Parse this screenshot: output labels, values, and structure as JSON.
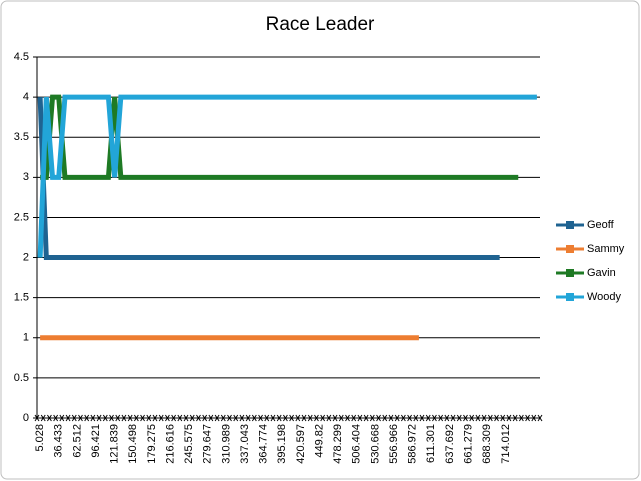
{
  "chart_data": {
    "type": "line",
    "title": "Race Leader",
    "categories": [
      "5.028",
      null,
      null,
      "36.433",
      null,
      null,
      "62.512",
      null,
      null,
      "96.421",
      null,
      null,
      "121.839",
      null,
      null,
      "150.498",
      null,
      null,
      "179.275",
      null,
      null,
      "216.616",
      null,
      null,
      "245.575",
      null,
      null,
      "279.647",
      null,
      null,
      "310.989",
      null,
      null,
      "337.043",
      null,
      null,
      "364.774",
      null,
      null,
      "395.198",
      null,
      null,
      "420.597",
      null,
      null,
      "449.82",
      null,
      null,
      "478.299",
      null,
      null,
      "506.404",
      null,
      null,
      "530.668",
      null,
      null,
      "556.966",
      null,
      null,
      "586.972",
      null,
      null,
      "611.301",
      null,
      null,
      "637.692",
      null,
      null,
      "661.279",
      null,
      null,
      "688.309",
      null,
      null,
      "714.012",
      null,
      null,
      null,
      null,
      null
    ],
    "series": [
      {
        "name": "Geoff",
        "color": "#1f6391",
        "values": [
          4,
          2,
          2,
          2,
          2,
          2,
          2,
          2,
          2,
          2,
          2,
          2,
          2,
          2,
          2,
          2,
          2,
          2,
          2,
          2,
          2,
          2,
          2,
          2,
          2,
          2,
          2,
          2,
          2,
          2,
          2,
          2,
          2,
          2,
          2,
          2,
          2,
          2,
          2,
          2,
          2,
          2,
          2,
          2,
          2,
          2,
          2,
          2,
          2,
          2,
          2,
          2,
          2,
          2,
          2,
          2,
          2,
          2,
          2,
          2,
          2,
          2,
          2,
          2,
          2,
          2,
          2,
          2,
          2,
          2,
          2,
          2,
          2,
          2,
          2,
          null,
          null,
          null,
          null,
          null,
          null
        ]
      },
      {
        "name": "Sammy",
        "color": "#ed7d31",
        "values": [
          1,
          1,
          1,
          1,
          1,
          1,
          1,
          1,
          1,
          1,
          1,
          1,
          1,
          1,
          1,
          1,
          1,
          1,
          1,
          1,
          1,
          1,
          1,
          1,
          1,
          1,
          1,
          1,
          1,
          1,
          1,
          1,
          1,
          1,
          1,
          1,
          1,
          1,
          1,
          1,
          1,
          1,
          1,
          1,
          1,
          1,
          1,
          1,
          1,
          1,
          1,
          1,
          1,
          1,
          1,
          1,
          1,
          1,
          1,
          1,
          1,
          1,
          null,
          null,
          null,
          null,
          null,
          null,
          null,
          null,
          null,
          null,
          null,
          null,
          null,
          null,
          null,
          null,
          null,
          null,
          null
        ]
      },
      {
        "name": "Gavin",
        "color": "#1e7a24",
        "values": [
          3,
          3,
          4,
          4,
          3,
          3,
          3,
          3,
          3,
          3,
          3,
          3,
          4,
          3,
          3,
          3,
          3,
          3,
          3,
          3,
          3,
          3,
          3,
          3,
          3,
          3,
          3,
          3,
          3,
          3,
          3,
          3,
          3,
          3,
          3,
          3,
          3,
          3,
          3,
          3,
          3,
          3,
          3,
          3,
          3,
          3,
          3,
          3,
          3,
          3,
          3,
          3,
          3,
          3,
          3,
          3,
          3,
          3,
          3,
          3,
          3,
          3,
          3,
          3,
          3,
          3,
          3,
          3,
          3,
          3,
          3,
          3,
          3,
          3,
          3,
          3,
          3,
          3,
          null,
          null,
          null
        ]
      },
      {
        "name": "Woody",
        "color": "#22a5d8",
        "values": [
          2,
          4,
          3,
          3,
          4,
          4,
          4,
          4,
          4,
          4,
          4,
          4,
          3,
          4,
          4,
          4,
          4,
          4,
          4,
          4,
          4,
          4,
          4,
          4,
          4,
          4,
          4,
          4,
          4,
          4,
          4,
          4,
          4,
          4,
          4,
          4,
          4,
          4,
          4,
          4,
          4,
          4,
          4,
          4,
          4,
          4,
          4,
          4,
          4,
          4,
          4,
          4,
          4,
          4,
          4,
          4,
          4,
          4,
          4,
          4,
          4,
          4,
          4,
          4,
          4,
          4,
          4,
          4,
          4,
          4,
          4,
          4,
          4,
          4,
          4,
          4,
          4,
          4,
          4,
          4,
          4
        ]
      }
    ],
    "ylim": [
      0,
      4.5
    ],
    "yticks": [
      0,
      0.5,
      1,
      1.5,
      2,
      2.5,
      3,
      3.5,
      4,
      4.5
    ],
    "grid": true,
    "legend": "right"
  }
}
